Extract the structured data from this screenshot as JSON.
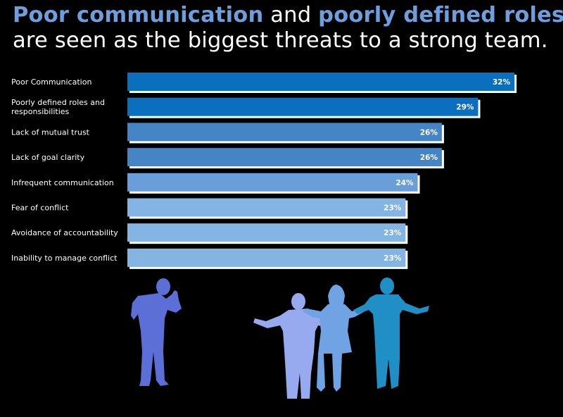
{
  "headline": {
    "line1": [
      {
        "text": "Poor communication",
        "highlight": true
      },
      {
        "text": " and ",
        "highlight": false
      },
      {
        "text": "poorly defined roles",
        "highlight": true
      }
    ],
    "line2": "are seen as the biggest threats to a strong team."
  },
  "colors": {
    "background": "#000000",
    "highlight_text": "#6b9fe0",
    "bar_shadow": "#ffffff"
  },
  "chart_data": {
    "type": "bar",
    "orientation": "horizontal",
    "categories": [
      "Poor Communication",
      "Poorly defined roles and responsibilities",
      "Lack of mutual trust",
      "Lack of goal clarity",
      "Infrequent communication",
      "Fear of conflict",
      "Avoidance of accountability",
      "Inability to manage conflict"
    ],
    "category_lines": [
      [
        "Poor Communication"
      ],
      [
        "Poorly defined roles and",
        "responsibilities"
      ],
      [
        "Lack of mutual trust"
      ],
      [
        "Lack of goal clarity"
      ],
      [
        "Infrequent communication"
      ],
      [
        "Fear of conflict"
      ],
      [
        "Avoidance of accountability"
      ],
      [
        "Inability to manage conflict"
      ]
    ],
    "values": [
      32,
      29,
      26,
      26,
      24,
      23,
      23,
      23
    ],
    "value_labels": [
      "32%",
      "29%",
      "26%",
      "26%",
      "24%",
      "23%",
      "23%",
      "23%"
    ],
    "bar_colors": [
      "#0a6fbf",
      "#0a6fbf",
      "#4585c6",
      "#4585c6",
      "#6a9ed9",
      "#84b4e2",
      "#84b4e2",
      "#84b4e2"
    ],
    "unit": "%",
    "xlim": [
      0,
      32
    ],
    "grid": false,
    "title": "",
    "xlabel": "",
    "ylabel": ""
  },
  "illustration": {
    "figures": [
      {
        "icon": "thinking-person-silhouette",
        "color": "#5b6fd6"
      },
      {
        "icon": "shrugging-man-silhouette",
        "color": "#97a9ef"
      },
      {
        "icon": "shrugging-woman-silhouette",
        "color": "#6fa3e3"
      },
      {
        "icon": "shrugging-man-silhouette",
        "color": "#1f8fc6"
      }
    ]
  }
}
